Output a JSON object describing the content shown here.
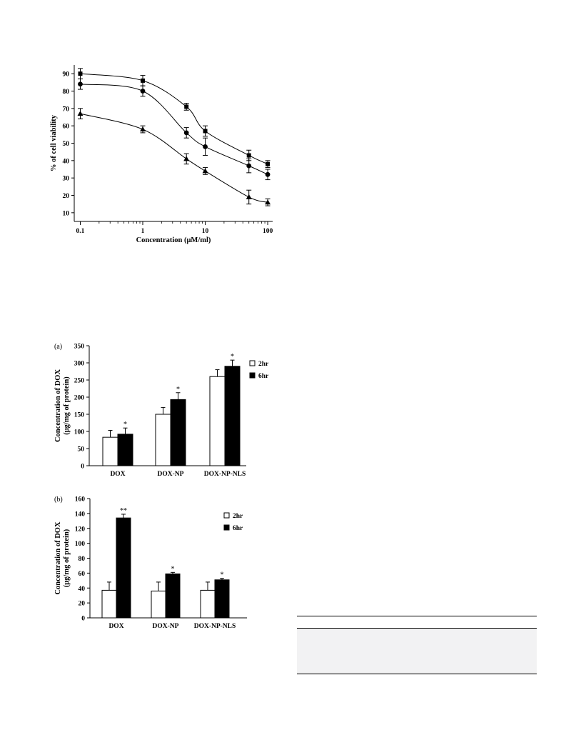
{
  "chart_data": [
    {
      "type": "line",
      "title": "",
      "xlabel": "Concentration (μM/ml)",
      "ylabel": "% of cell viability",
      "xscale": "log",
      "xlim": [
        0.08,
        120
      ],
      "ylim": [
        5,
        95
      ],
      "x_ticks": [
        0.1,
        1,
        10,
        100
      ],
      "x_tick_labels": [
        "0.1",
        "1",
        "10",
        "100"
      ],
      "y_ticks": [
        10,
        20,
        30,
        40,
        50,
        60,
        70,
        80,
        90
      ],
      "y_tick_labels": [
        "10",
        "20",
        "30",
        "40",
        "50",
        "60",
        "70",
        "80",
        "90"
      ],
      "grid": false,
      "series": [
        {
          "marker": "square",
          "x": [
            0.1,
            1,
            5,
            10,
            50,
            100
          ],
          "y": [
            90,
            86,
            71,
            57,
            43,
            38
          ],
          "err": [
            3,
            3,
            2,
            3,
            3,
            2
          ]
        },
        {
          "marker": "circle",
          "x": [
            0.1,
            1,
            5,
            10,
            50,
            100
          ],
          "y": [
            84,
            80,
            56,
            48,
            37,
            32
          ],
          "err": [
            3,
            3,
            3,
            5,
            4,
            3
          ]
        },
        {
          "marker": "triangle",
          "x": [
            0.1,
            1,
            5,
            10,
            50,
            100
          ],
          "y": [
            67,
            58,
            41,
            34,
            19,
            16
          ],
          "err": [
            3,
            2,
            3,
            2,
            4,
            2
          ]
        }
      ]
    },
    {
      "type": "bar",
      "panel_label": "(a)",
      "title": "",
      "xlabel": "",
      "ylabel": "Concentration of DOX (μg/mg of protein)",
      "ylim": [
        0,
        350
      ],
      "y_ticks": [
        0,
        50,
        100,
        150,
        200,
        250,
        300,
        350
      ],
      "y_tick_labels": [
        "0",
        "50",
        "100",
        "150",
        "200",
        "250",
        "300",
        "350"
      ],
      "categories": [
        "DOX",
        "DOX-NP",
        "DOX-NP-NLS"
      ],
      "series": [
        {
          "name": "2hr",
          "color": "#ffffff",
          "values": [
            83,
            150,
            260
          ],
          "err": [
            20,
            20,
            20
          ]
        },
        {
          "name": "6hr",
          "color": "#000000",
          "values": [
            92,
            193,
            290
          ],
          "err": [
            18,
            20,
            18
          ]
        }
      ],
      "annotations": [
        "*",
        "*",
        "*"
      ],
      "legend_position": "top-right"
    },
    {
      "type": "bar",
      "panel_label": "(b)",
      "title": "",
      "xlabel": "",
      "ylabel": "Concentration of DOX (μg/mg of protein)",
      "ylim": [
        0,
        160
      ],
      "y_ticks": [
        0,
        20,
        40,
        60,
        80,
        100,
        120,
        140,
        160
      ],
      "y_tick_labels": [
        "0",
        "20",
        "40",
        "60",
        "80",
        "100",
        "120",
        "140",
        "160"
      ],
      "categories": [
        "DOX",
        "DOX-NP",
        "DOX-NP-NLS"
      ],
      "series": [
        {
          "name": "2hr",
          "color": "#ffffff",
          "values": [
            37,
            36,
            37
          ],
          "err": [
            11,
            12,
            11
          ]
        },
        {
          "name": "6hr",
          "color": "#000000",
          "values": [
            134,
            59,
            51
          ],
          "err": [
            5,
            2,
            2
          ]
        }
      ],
      "annotations": [
        "**",
        "*",
        "*"
      ],
      "legend_position": "top-right"
    }
  ]
}
